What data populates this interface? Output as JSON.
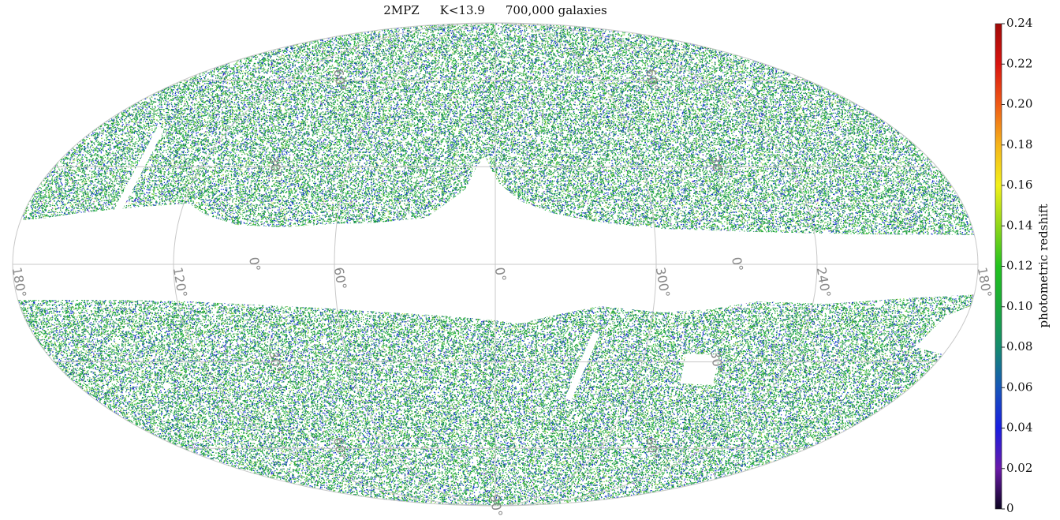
{
  "chart_data": {
    "type": "mollweide",
    "title": [
      "2MPZ",
      "K<13.9",
      "700,000 galaxies"
    ],
    "grid": true,
    "lon_ticks": [
      {
        "value": 180,
        "label": "180°"
      },
      {
        "value": 120,
        "label": "120°"
      },
      {
        "value": 60,
        "label": "60°"
      },
      {
        "value": 0,
        "label": "0°"
      },
      {
        "value": 300,
        "label": "300°"
      },
      {
        "value": 240,
        "label": "240°"
      },
      {
        "value": 180,
        "label": "180°"
      }
    ],
    "lat_ticks": [
      {
        "value": 60,
        "label": "60°"
      },
      {
        "value": 30,
        "label": "30°"
      },
      {
        "value": 0,
        "label": "0°"
      },
      {
        "value": -30,
        "label": "30°"
      },
      {
        "value": -60,
        "label": "60°"
      },
      {
        "value": -90,
        "label": "90°"
      }
    ],
    "colorbar": {
      "label": "photometric redshift",
      "lim": [
        0,
        0.24
      ],
      "ticks": [
        0,
        0.02,
        0.04,
        0.06,
        0.08,
        {
          "value": 0.1,
          "label": "0.10"
        },
        0.12,
        0.14,
        0.16,
        0.18,
        {
          "value": 0.2,
          "label": "0.20"
        },
        0.22,
        0.24
      ],
      "colormap": [
        "#0d0521",
        "#6a1aa8",
        "#1a1ee0",
        "#1756b8",
        "#158a6e",
        "#1aa83a",
        "#22c21f",
        "#8fd61a",
        "#f2f01a",
        "#f5b41a",
        "#ef5a16",
        "#d81410",
        "#a00a08"
      ]
    }
  }
}
